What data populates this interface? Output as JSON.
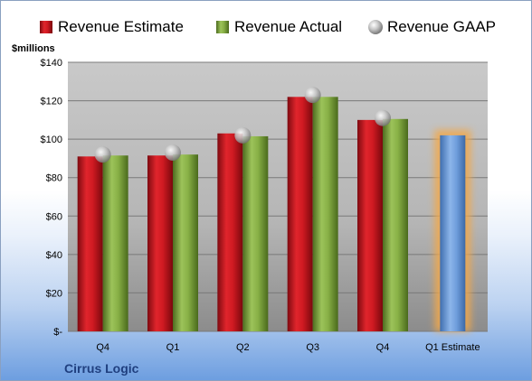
{
  "chart_data": {
    "type": "bar",
    "ylabel": "$millions",
    "ylim": [
      0,
      140
    ],
    "yticks": [
      0,
      20,
      40,
      60,
      80,
      100,
      120,
      140
    ],
    "ytick_labels": [
      "$-",
      "$20",
      "$40",
      "$60",
      "$80",
      "$100",
      "$120",
      "$140"
    ],
    "categories": [
      "Q4",
      "Q1",
      "Q2",
      "Q3",
      "Q4",
      "Q1 Estimate"
    ],
    "series": [
      {
        "name": "Revenue Estimate",
        "kind": "bar",
        "color": "#c0141c",
        "values": [
          91,
          91.5,
          103,
          122,
          110,
          null
        ]
      },
      {
        "name": "Revenue Actual",
        "kind": "bar",
        "color": "#7da33c",
        "values": [
          91.5,
          92,
          101.5,
          122,
          110.5,
          null
        ]
      },
      {
        "name": "Revenue GAAP",
        "kind": "marker",
        "color": "#b8b8b8",
        "values": [
          92,
          93,
          102,
          123,
          111,
          null
        ]
      }
    ],
    "forecast": {
      "category": "Q1 Estimate",
      "value": 102,
      "color": "#6a9bd8",
      "glow_color": "#f3a84a"
    },
    "grid": true,
    "legend_position": "top",
    "company": "Cirrus Logic"
  }
}
